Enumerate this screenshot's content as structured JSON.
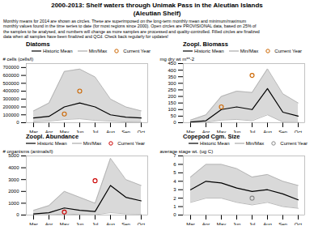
{
  "title": "2000-2013:  Shelf waters through Unimak Pass in the Aleutian Islands\n(Aleutian Shelf)",
  "subtitle": "Monthly means for 2014 are shown as circles. These are superimposed on the long-term monthly mean and minimum/maximum\nmonthly values found in the time series to date (for most regions since 2000). Open circles are PROVISIONAL data, based on 25% of\nthe samples to be analysed, and numbers will change as more samples are processed and quality-controlled. Filled circles are finalized\ndata when all samples have been finalized and QCd. Check back regularly for updates!",
  "chart_data": [
    {
      "type": "line",
      "title": "Diatoms",
      "ylabel": "# cells (cells/l)",
      "categories": [
        "Mar",
        "Apr",
        "May",
        "Jun",
        "Jul",
        "Aug",
        "Sep",
        "Oct"
      ],
      "ylim": [
        0,
        750000
      ],
      "yticks": [
        0,
        100000,
        200000,
        300000,
        400000,
        500000,
        600000,
        700000
      ],
      "legend": "upper right",
      "series": [
        {
          "name": "Historic Mean",
          "type": "line",
          "color": "#000000",
          "values": [
            60000,
            80000,
            200000,
            250000,
            200000,
            100000,
            70000,
            60000
          ]
        },
        {
          "name": "Min/Max",
          "type": "band",
          "color": "#aaaaaa",
          "min": [
            10000,
            20000,
            40000,
            50000,
            30000,
            20000,
            10000,
            8000
          ],
          "max": [
            150000,
            250000,
            650000,
            680000,
            580000,
            300000,
            200000,
            150000
          ]
        },
        {
          "name": "Current Year",
          "type": "scatter",
          "color": "#cc6600",
          "marker": "open_circle",
          "values": [
            null,
            null,
            110000,
            400000,
            null,
            null,
            null,
            null
          ]
        }
      ]
    },
    {
      "type": "line",
      "title": "Zoopl. Biomass",
      "ylabel": "mg dry wt m**-2",
      "categories": [
        "Mar",
        "Apr",
        "May",
        "Jun",
        "Jul",
        "Aug",
        "Sep",
        "Oct"
      ],
      "ylim": [
        0,
        450
      ],
      "yticks": [
        0,
        50,
        100,
        150,
        200,
        250,
        300,
        350,
        400,
        450
      ],
      "legend": "upper left",
      "series": [
        {
          "name": "Historic Mean",
          "type": "line",
          "color": "#000000",
          "values": [
            5,
            15,
            100,
            120,
            100,
            260,
            80,
            50
          ]
        },
        {
          "name": "Min/Max",
          "type": "band",
          "color": "#aaaaaa",
          "min": [
            1,
            3,
            20,
            25,
            15,
            60,
            5,
            3
          ],
          "max": [
            20,
            60,
            200,
            240,
            230,
            410,
            220,
            150
          ]
        },
        {
          "name": "Current Year",
          "type": "scatter",
          "color": "#cc6600",
          "marker": "open_circle",
          "values": [
            null,
            null,
            120,
            null,
            360,
            null,
            null,
            null
          ]
        }
      ]
    },
    {
      "type": "line",
      "title": "Zoopl. Abundance",
      "ylabel": "# organisms (animals/l)",
      "categories": [
        "Mar",
        "Apr",
        "May",
        "Jun",
        "Jul",
        "Aug",
        "Sep",
        "Oct"
      ],
      "ylim": [
        0,
        5000
      ],
      "yticks": [
        0,
        1000,
        2000,
        3000,
        4000,
        5000
      ],
      "legend": "upper left",
      "series": [
        {
          "name": "Historic Mean",
          "type": "line",
          "color": "#000000",
          "values": [
            100,
            200,
            600,
            400,
            300,
            2500,
            1500,
            1200
          ]
        },
        {
          "name": "Min/Max",
          "type": "band",
          "color": "#aaaaaa",
          "min": [
            10,
            20,
            100,
            50,
            30,
            200,
            100,
            80
          ],
          "max": [
            400,
            800,
            2000,
            1500,
            1000,
            4800,
            3000,
            2500
          ]
        },
        {
          "name": "Current Year",
          "type": "scatter",
          "color": "#cc0000",
          "marker": "open_circle",
          "values": [
            null,
            null,
            250,
            null,
            2900,
            null,
            null,
            null
          ]
        }
      ]
    },
    {
      "type": "line",
      "title": "Copepod Cgm. Size",
      "ylabel": "average stage wt. (ug C)",
      "categories": [
        "Mar",
        "Apr",
        "May",
        "Jun",
        "Jul",
        "Aug",
        "Sep",
        "Oct"
      ],
      "ylim": [
        0,
        7
      ],
      "yticks": [
        0,
        1,
        2,
        3,
        4,
        5,
        6,
        7
      ],
      "legend": "upper right",
      "series": [
        {
          "name": "Historic Mean",
          "type": "line",
          "color": "#000000",
          "values": [
            3.0,
            4.0,
            3.8,
            3.2,
            2.8,
            3.0,
            2.5,
            1.8
          ]
        },
        {
          "name": "Min/Max",
          "type": "band",
          "color": "#aaaaaa",
          "min": [
            1.5,
            2.0,
            2.0,
            1.5,
            1.2,
            1.5,
            1.0,
            0.8
          ],
          "max": [
            4.5,
            6.0,
            6.0,
            5.5,
            4.5,
            4.8,
            4.0,
            3.5
          ]
        },
        {
          "name": "Current Year",
          "type": "scatter",
          "color": "#888888",
          "marker": "open_circle",
          "values": [
            null,
            null,
            null,
            null,
            2.0,
            null,
            null,
            null
          ]
        }
      ]
    }
  ]
}
